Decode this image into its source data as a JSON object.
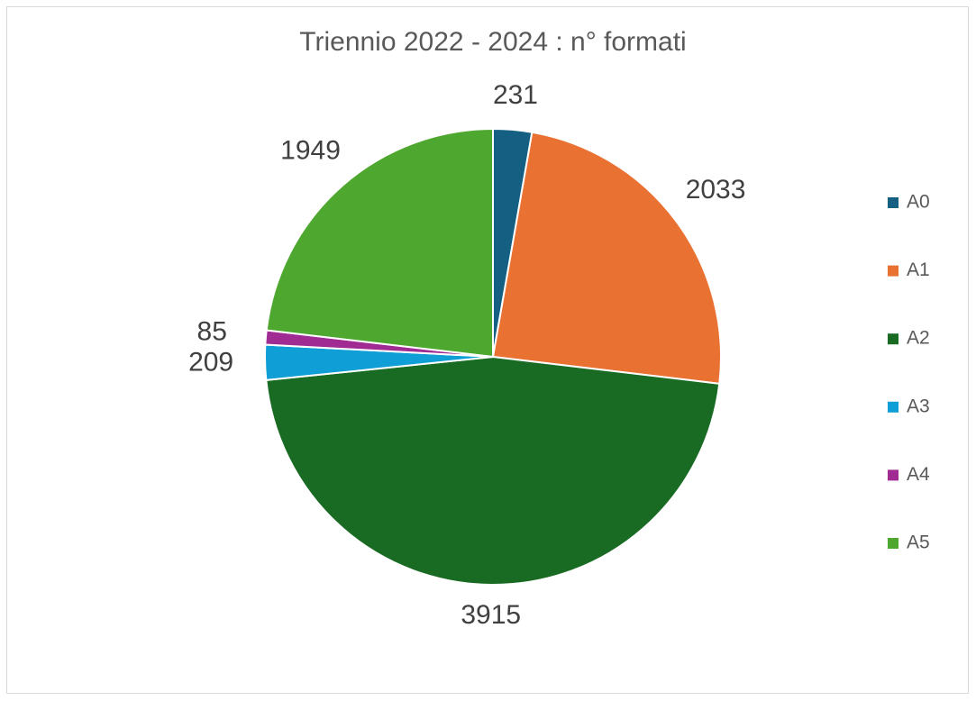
{
  "chart_data": {
    "type": "pie",
    "title": "Triennio 2022 - 2024 : n° formati",
    "categories": [
      "A0",
      "A1",
      "A2",
      "A3",
      "A4",
      "A5"
    ],
    "values": [
      231,
      2033,
      3915,
      209,
      85,
      1949
    ],
    "colors": [
      "#156082",
      "#e97132",
      "#196b24",
      "#0f9ed5",
      "#a02b93",
      "#4ea72e"
    ],
    "legend": "right"
  }
}
